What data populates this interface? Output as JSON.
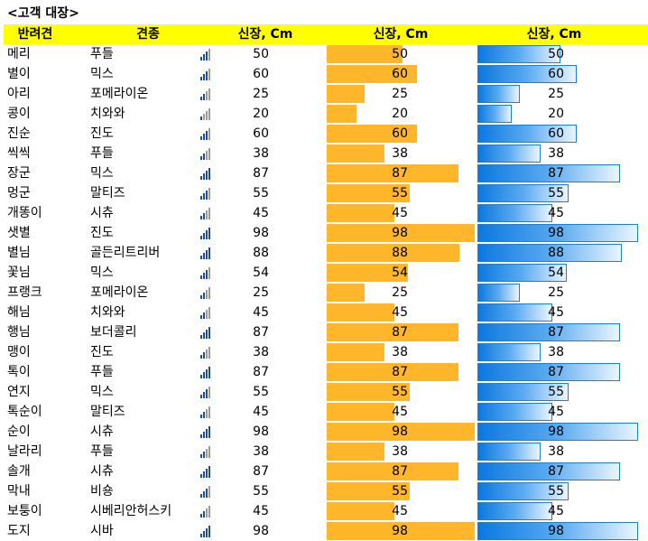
{
  "title": "<고객 대장>",
  "headers": {
    "name": "반려견",
    "breed": "견종",
    "height": "신장, Cm",
    "bar1": "신장, Cm",
    "bar2": "신장, Cm"
  },
  "colors": {
    "header_bg": "#ffff00",
    "bar_orange": "#ffb62b",
    "bar_blue": "#0b78df",
    "icon_blue": "#1f4e8a"
  },
  "bar_max": 98,
  "rows": [
    {
      "name": "메리",
      "breed": "푸들",
      "height": 50
    },
    {
      "name": "별이",
      "breed": "믹스",
      "height": 60
    },
    {
      "name": "아리",
      "breed": "포메라이온",
      "height": 25
    },
    {
      "name": "콩이",
      "breed": "치와와",
      "height": 20
    },
    {
      "name": "진순",
      "breed": "진도",
      "height": 60
    },
    {
      "name": "씩씩",
      "breed": "푸들",
      "height": 38
    },
    {
      "name": "장군",
      "breed": "믹스",
      "height": 87
    },
    {
      "name": "멍군",
      "breed": "말티즈",
      "height": 55
    },
    {
      "name": "개똥이",
      "breed": "시츄",
      "height": 45
    },
    {
      "name": "샛별",
      "breed": "진도",
      "height": 98
    },
    {
      "name": "별님",
      "breed": "골든리트리버",
      "height": 88
    },
    {
      "name": "꽃님",
      "breed": "믹스",
      "height": 54
    },
    {
      "name": "프랭크",
      "breed": "포메라이온",
      "height": 25
    },
    {
      "name": "해님",
      "breed": "치와와",
      "height": 45
    },
    {
      "name": "행님",
      "breed": "보더콜리",
      "height": 87
    },
    {
      "name": "맹이",
      "breed": "진도",
      "height": 38
    },
    {
      "name": "톡이",
      "breed": "푸들",
      "height": 87
    },
    {
      "name": "연지",
      "breed": "믹스",
      "height": 55
    },
    {
      "name": "톡순이",
      "breed": "말티즈",
      "height": 45
    },
    {
      "name": "순이",
      "breed": "시츄",
      "height": 98
    },
    {
      "name": "날라리",
      "breed": "푸들",
      "height": 38
    },
    {
      "name": "솔개",
      "breed": "시츄",
      "height": 87
    },
    {
      "name": "막내",
      "breed": "비숑",
      "height": 55
    },
    {
      "name": "보퉁이",
      "breed": "시베리안허스키",
      "height": 45
    },
    {
      "name": "도지",
      "breed": "시바",
      "height": 98
    }
  ]
}
